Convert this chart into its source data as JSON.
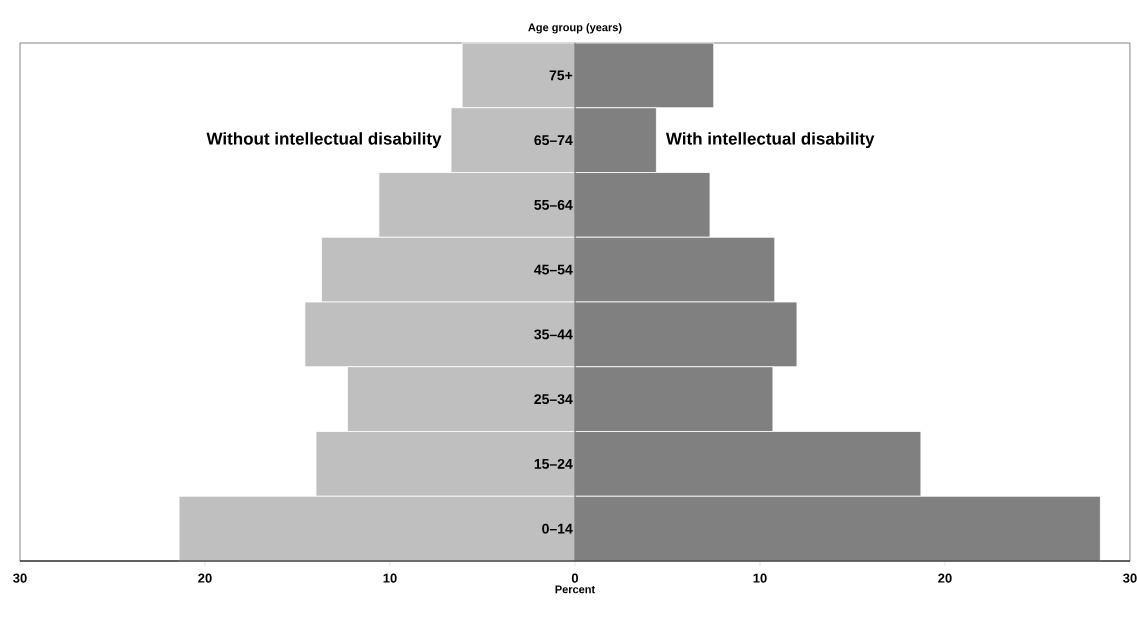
{
  "chart_data": {
    "type": "bar",
    "orientation": "horizontal",
    "stacked": true,
    "ylabel": "Age group (years)",
    "xlabel": "Percent",
    "categories": [
      "75+",
      "65–74",
      "55–64",
      "45–54",
      "35–44",
      "25–34",
      "15–24",
      "0–14"
    ],
    "series": [
      {
        "name": "Without intellectual disability",
        "color": "#bfbfbf",
        "values": [
          -6.1,
          -6.7,
          -10.6,
          -13.7,
          -14.6,
          -12.3,
          -14.0,
          -21.4
        ]
      },
      {
        "name": "With intellectual disability",
        "color": "#808080",
        "values": [
          7.5,
          4.4,
          7.3,
          10.8,
          12.0,
          10.7,
          18.7,
          28.4
        ]
      }
    ],
    "xlim": [
      -30,
      30
    ],
    "xticks": [
      {
        "value": -30,
        "label": "30"
      },
      {
        "value": -20,
        "label": "20"
      },
      {
        "value": -10,
        "label": "10"
      },
      0,
      10,
      20,
      30
    ]
  }
}
